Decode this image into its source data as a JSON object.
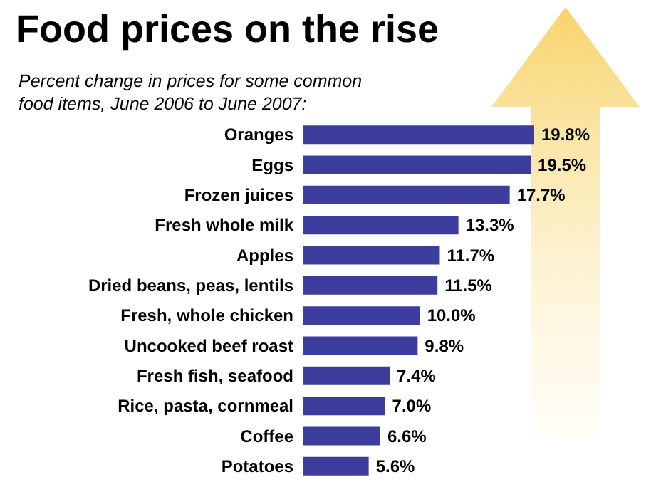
{
  "chart_data": {
    "type": "bar",
    "orientation": "horizontal",
    "title": "Food prices on the rise",
    "subtitle": "Percent change in prices for some common\nfood items, June 2006 to June 2007:",
    "categories": [
      "Oranges",
      "Eggs",
      "Frozen juices",
      "Fresh whole milk",
      "Apples",
      "Dried beans, peas, lentils",
      "Fresh, whole chicken",
      "Uncooked beef roast",
      "Fresh fish, seafood",
      "Rice, pasta, cornmeal",
      "Coffee",
      "Potatoes"
    ],
    "values": [
      19.8,
      19.5,
      17.7,
      13.3,
      11.7,
      11.5,
      10.0,
      9.8,
      7.4,
      7.0,
      6.6,
      5.6
    ],
    "value_labels": [
      "19.8%",
      "19.5%",
      "17.7%",
      "13.3%",
      "11.7%",
      "11.5%",
      "10.0%",
      "9.8%",
      "7.4%",
      "7.0%",
      "6.6%",
      "5.6%"
    ],
    "color": "#3d3d9e"
  }
}
